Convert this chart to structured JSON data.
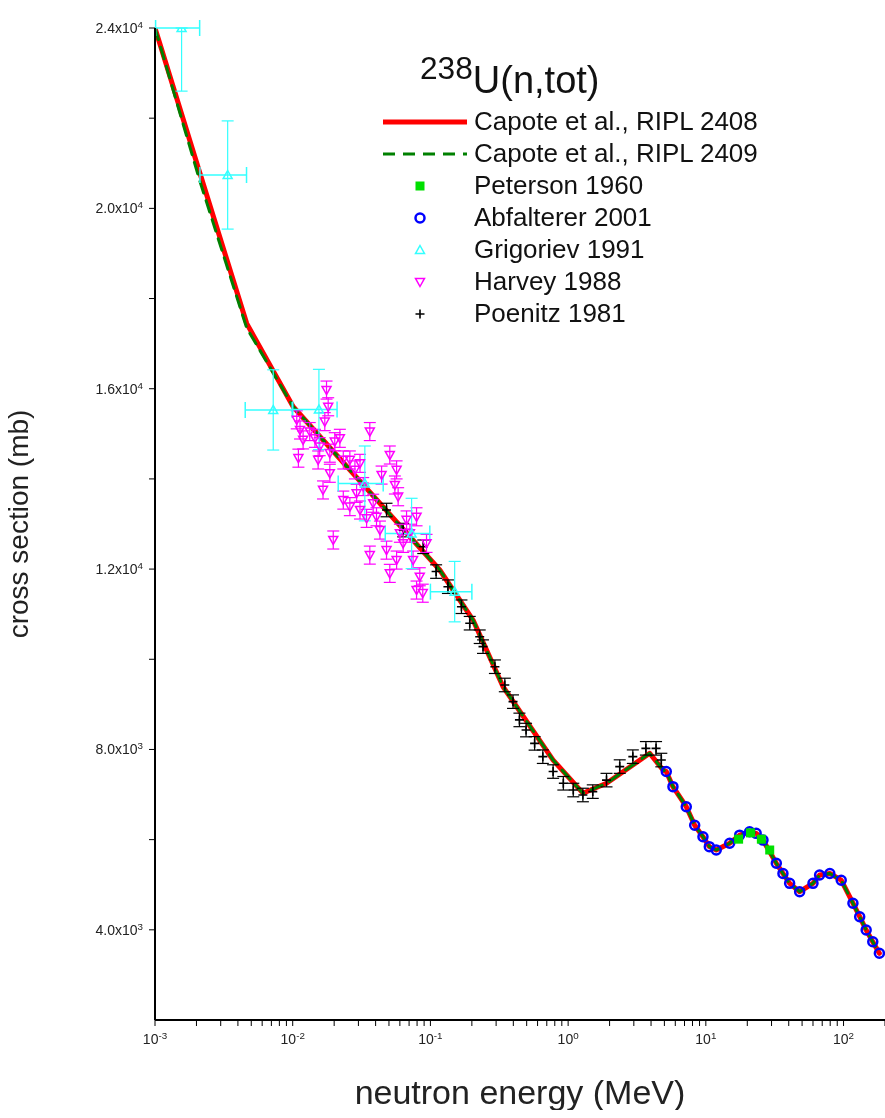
{
  "chart_data": {
    "type": "scatter",
    "xlabel": "neutron energy (MeV)",
    "ylabel": "cross section (mb)",
    "legend_title": "$^{238}$U(n,tot)",
    "legend": "top right",
    "log": "x",
    "xlim": [
      0.001,
      200
    ],
    "ylim": [
      2000,
      24000
    ],
    "xticks": [
      {
        "value": 0.001,
        "label": "10$^{-3}$"
      },
      {
        "value": 0.002,
        "label": null
      },
      {
        "value": 0.003,
        "label": null
      },
      {
        "value": 0.004,
        "label": null
      },
      {
        "value": 0.005,
        "label": null
      },
      {
        "value": 0.006,
        "label": null
      },
      {
        "value": 0.007,
        "label": null
      },
      {
        "value": 0.008,
        "label": null
      },
      {
        "value": 0.009,
        "label": null
      },
      {
        "value": 0.01,
        "label": "10$^{-2}$"
      },
      {
        "value": 0.02,
        "label": null
      },
      {
        "value": 0.03,
        "label": null
      },
      {
        "value": 0.04,
        "label": null
      },
      {
        "value": 0.05,
        "label": null
      },
      {
        "value": 0.06,
        "label": null
      },
      {
        "value": 0.07,
        "label": null
      },
      {
        "value": 0.08,
        "label": null
      },
      {
        "value": 0.09,
        "label": null
      },
      {
        "value": 0.1,
        "label": "10$^{-1}$"
      },
      {
        "value": 0.2,
        "label": null
      },
      {
        "value": 0.3,
        "label": null
      },
      {
        "value": 0.4,
        "label": null
      },
      {
        "value": 0.5,
        "label": null
      },
      {
        "value": 0.6,
        "label": null
      },
      {
        "value": 0.7,
        "label": null
      },
      {
        "value": 0.8,
        "label": null
      },
      {
        "value": 0.9,
        "label": null
      },
      {
        "value": 1,
        "label": "10$^{0}$"
      },
      {
        "value": 2,
        "label": null
      },
      {
        "value": 3,
        "label": null
      },
      {
        "value": 4,
        "label": null
      },
      {
        "value": 5,
        "label": null
      },
      {
        "value": 6,
        "label": null
      },
      {
        "value": 7,
        "label": null
      },
      {
        "value": 8,
        "label": null
      },
      {
        "value": 9,
        "label": null
      },
      {
        "value": 10,
        "label": "10$^{1}$"
      },
      {
        "value": 20,
        "label": null
      },
      {
        "value": 30,
        "label": null
      },
      {
        "value": 40,
        "label": null
      },
      {
        "value": 50,
        "label": null
      },
      {
        "value": 60,
        "label": null
      },
      {
        "value": 70,
        "label": null
      },
      {
        "value": 80,
        "label": null
      },
      {
        "value": 90,
        "label": null
      },
      {
        "value": 100,
        "label": "10$^{2}$"
      },
      {
        "value": 200,
        "label": null
      }
    ],
    "yticks": [
      {
        "value": 4000,
        "label": "4.0x10$^{3}$"
      },
      {
        "value": 6000,
        "label": null
      },
      {
        "value": 8000,
        "label": "8.0x10$^{3}$"
      },
      {
        "value": 10000,
        "label": null
      },
      {
        "value": 12000,
        "label": "1.2x10$^{4}$"
      },
      {
        "value": 14000,
        "label": null
      },
      {
        "value": 16000,
        "label": "1.6x10$^{4}$"
      },
      {
        "value": 18000,
        "label": null
      },
      {
        "value": 20000,
        "label": "2.0x10$^{4}$"
      },
      {
        "value": 22000,
        "label": null
      },
      {
        "value": 24000,
        "label": "2.4x10$^{4}$"
      }
    ],
    "series": [
      {
        "name": "Capote et al., RIPL 2408",
        "type": "line",
        "color": "#ff0000",
        "line_style": "solid",
        "x": [
          0.001,
          0.00212,
          0.00463,
          0.01008,
          0.117,
          0.204,
          0.337,
          0.778,
          1.28,
          1.9,
          3.91,
          4.89,
          5.16,
          5.77,
          7.21,
          8.3,
          9.53,
          10.6,
          11.9,
          14.9,
          17.6,
          20.8,
          23.2,
          26.0,
          32.5,
          36.3,
          40.6,
          48.0,
          60,
          67,
          79.5,
          96.2,
          117,
          131,
          146,
          163,
          182
        ],
        "values": [
          24000,
          20780,
          17450,
          15600,
          11980,
          10870,
          9390,
          7765,
          7030,
          7250,
          7915,
          7545,
          7510,
          7175,
          6730,
          6320,
          6065,
          5845,
          5770,
          5920,
          6100,
          6175,
          6140,
          5990,
          5475,
          5250,
          5030,
          4845,
          5030,
          5215,
          5250,
          5100,
          4590,
          4290,
          3995,
          3735,
          3480
        ]
      },
      {
        "name": "Capote et al., RIPL 2409",
        "type": "line",
        "color": "#008000",
        "line_style": "dashed",
        "x": [
          0.001,
          0.00212,
          0.00463,
          0.01008,
          0.117,
          0.204,
          0.337,
          0.778,
          1.28,
          1.9,
          3.91,
          4.89,
          5.16,
          5.77,
          7.21,
          8.3,
          9.53,
          10.6,
          11.9,
          14.9,
          17.6,
          20.8,
          23.2,
          26.0,
          32.5,
          36.3,
          40.6,
          48.0,
          60,
          67,
          79.5,
          96.2,
          117,
          131,
          146,
          163,
          182
        ],
        "values": [
          24000,
          20600,
          17350,
          15600,
          11980,
          10870,
          9390,
          7765,
          7030,
          7250,
          7915,
          7545,
          7510,
          7175,
          6730,
          6320,
          6065,
          5845,
          5770,
          5920,
          6100,
          6175,
          6140,
          5990,
          5475,
          5250,
          5030,
          4845,
          5030,
          5215,
          5250,
          5100,
          4590,
          4290,
          3995,
          3735,
          3480
        ]
      },
      {
        "name": "Peterson 1960",
        "color": "#00e000",
        "marker": "square",
        "x": [
          17.3,
          21.1,
          25.3,
          29.1
        ],
        "values": [
          6010,
          6150,
          6010,
          5770
        ]
      },
      {
        "name": "Abfalterer 2001",
        "color": "#0000ff",
        "marker": "circle",
        "x": [
          5.16,
          5.77,
          7.21,
          8.3,
          9.53,
          10.6,
          11.9,
          14.9,
          17.6,
          20.8,
          23.2,
          26.0,
          32.5,
          36.3,
          40.6,
          48.0,
          60,
          67,
          79.5,
          96.2,
          117,
          131,
          146,
          163,
          182
        ],
        "values": [
          7510,
          7175,
          6730,
          6320,
          6065,
          5845,
          5770,
          5920,
          6100,
          6175,
          6140,
          5990,
          5475,
          5250,
          5030,
          4845,
          5030,
          5215,
          5250,
          5100,
          4590,
          4290,
          3995,
          3735,
          3480
        ]
      },
      {
        "name": "Grigoriev 1991",
        "color": "#33ffff",
        "marker": "triangle",
        "x": [
          0.00156,
          0.00337,
          0.00722,
          0.0155,
          0.0334,
          0.073,
          0.15
        ],
        "values": [
          24000,
          20740,
          15530,
          15540,
          13900,
          12790,
          11500
        ],
        "errors": [
          [
            22600,
            24000
          ],
          1200,
          890,
          890,
          830,
          780,
          670
        ],
        "xerrors": [
          0.00055,
          0.00125,
          0.0027,
          0.0055,
          0.012,
          0.026,
          0.05
        ]
      },
      {
        "name": "Harvey 1988",
        "color": "#ff00ff",
        "marker": "triangle-down",
        "x": [
          0.0176,
          0.0181,
          0.0171,
          0.0107,
          0.0113,
          0.0119,
          0.0133,
          0.0145,
          0.0157,
          0.011,
          0.0153,
          0.0186,
          0.0202,
          0.022,
          0.0186,
          0.0166,
          0.0233,
          0.026,
          0.0283,
          0.0308,
          0.0363,
          0.0233,
          0.026,
          0.0291,
          0.0325,
          0.0197,
          0.0507,
          0.0568,
          0.0442,
          0.0552,
          0.0583,
          0.0384,
          0.0344,
          0.0363,
          0.043,
          0.048,
          0.0507,
          0.0568,
          0.0634,
          0.071,
          0.0793,
          0.0671,
          0.0748,
          0.0837,
          0.0937,
          0.088,
          0.0793,
          0.06,
          0.0406,
          0.0308
        ],
        "values": [
          15970,
          15600,
          15270,
          15310,
          15085,
          14865,
          15050,
          14900,
          14715,
          14460,
          14420,
          14570,
          14825,
          14900,
          14125,
          13755,
          14420,
          14420,
          14200,
          14345,
          15050,
          13530,
          13385,
          13680,
          13830,
          12645,
          14530,
          14200,
          14085,
          13865,
          13605,
          13460,
          13125,
          12310,
          12865,
          12420,
          11905,
          12200,
          12570,
          12795,
          13160,
          13090,
          12200,
          11830,
          12570,
          11465,
          11535,
          12795,
          13160,
          13310
        ],
        "errors": [
          200,
          200,
          200,
          200,
          200,
          200,
          200,
          200,
          200,
          200,
          200,
          200,
          200,
          200,
          200,
          200,
          200,
          200,
          200,
          200,
          200,
          200,
          200,
          200,
          200,
          200,
          200,
          200,
          200,
          200,
          200,
          200,
          200,
          200,
          200,
          200,
          200,
          200,
          200,
          200,
          200,
          200,
          200,
          200,
          200,
          200,
          200,
          200,
          200,
          200
        ]
      },
      {
        "name": "Poenitz 1981",
        "color": "#000000",
        "marker": "cross",
        "x": [
          0.048,
          0.0634,
          0.0887,
          0.11,
          0.134,
          0.168,
          0.193,
          0.228,
          0.241,
          0.294,
          0.347,
          0.398,
          0.443,
          0.495,
          0.571,
          0.655,
          0.778,
          0.923,
          1.09,
          1.28,
          1.51,
          1.9,
          2.37,
          2.95,
          3.67,
          4.35,
          4.75
        ],
        "values": [
          13310,
          12865,
          12495,
          11945,
          11610,
          11165,
          10800,
          10500,
          10280,
          9835,
          9430,
          9060,
          8655,
          8430,
          8135,
          7840,
          7510,
          7250,
          7100,
          6990,
          7065,
          7320,
          7620,
          7840,
          8025,
          8025,
          7765
        ],
        "errors": [
          150,
          150,
          150,
          150,
          150,
          150,
          150,
          150,
          150,
          150,
          150,
          150,
          150,
          150,
          150,
          150,
          150,
          150,
          150,
          150,
          150,
          150,
          150,
          150,
          150,
          150,
          150
        ]
      }
    ]
  }
}
